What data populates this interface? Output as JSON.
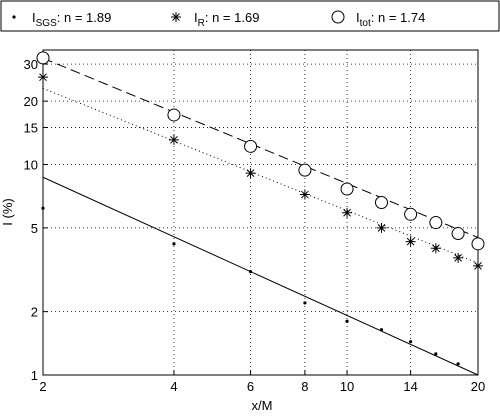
{
  "chart_data": {
    "type": "scatter",
    "x_label": "x/M",
    "y_label": "I (%)",
    "x": [
      2,
      4,
      6,
      8,
      10,
      12,
      14,
      16,
      18,
      20
    ],
    "xlim": [
      2,
      20
    ],
    "ylim": [
      1,
      35
    ],
    "xticks": [
      2,
      4,
      6,
      8,
      10,
      14,
      20
    ],
    "yticks": [
      1,
      2,
      5,
      10,
      15,
      20,
      30
    ],
    "log_x": true,
    "log_y": true,
    "grid": true,
    "legend": "top",
    "series": [
      {
        "name": "I",
        "subscript": "SGS",
        "note": ": n = 1.89",
        "marker": "dot",
        "color": "#000000",
        "values": [
          6.2,
          4.2,
          3.1,
          2.2,
          1.8,
          1.64,
          1.44,
          1.26,
          1.13,
          null
        ],
        "fit": [
          8.7,
          1.0
        ],
        "fit_style": "solid"
      },
      {
        "name": "I",
        "subscript": "R",
        "note": ": n = 1.69",
        "marker": "star",
        "color": "#000000",
        "values": [
          26.0,
          13.1,
          9.1,
          7.2,
          5.9,
          5.0,
          4.3,
          4.0,
          3.6,
          3.3
        ],
        "fit": [
          23,
          3.4
        ],
        "fit_style": "dotted"
      },
      {
        "name": "I",
        "subscript": "tot",
        "note": ": n = 1.74",
        "marker": "circle",
        "color": "#000000",
        "values": [
          32.1,
          17.2,
          12.2,
          9.4,
          7.65,
          6.6,
          5.8,
          5.3,
          4.7,
          4.2
        ],
        "fit": [
          32,
          4.5
        ],
        "fit_style": "dashed"
      }
    ]
  }
}
